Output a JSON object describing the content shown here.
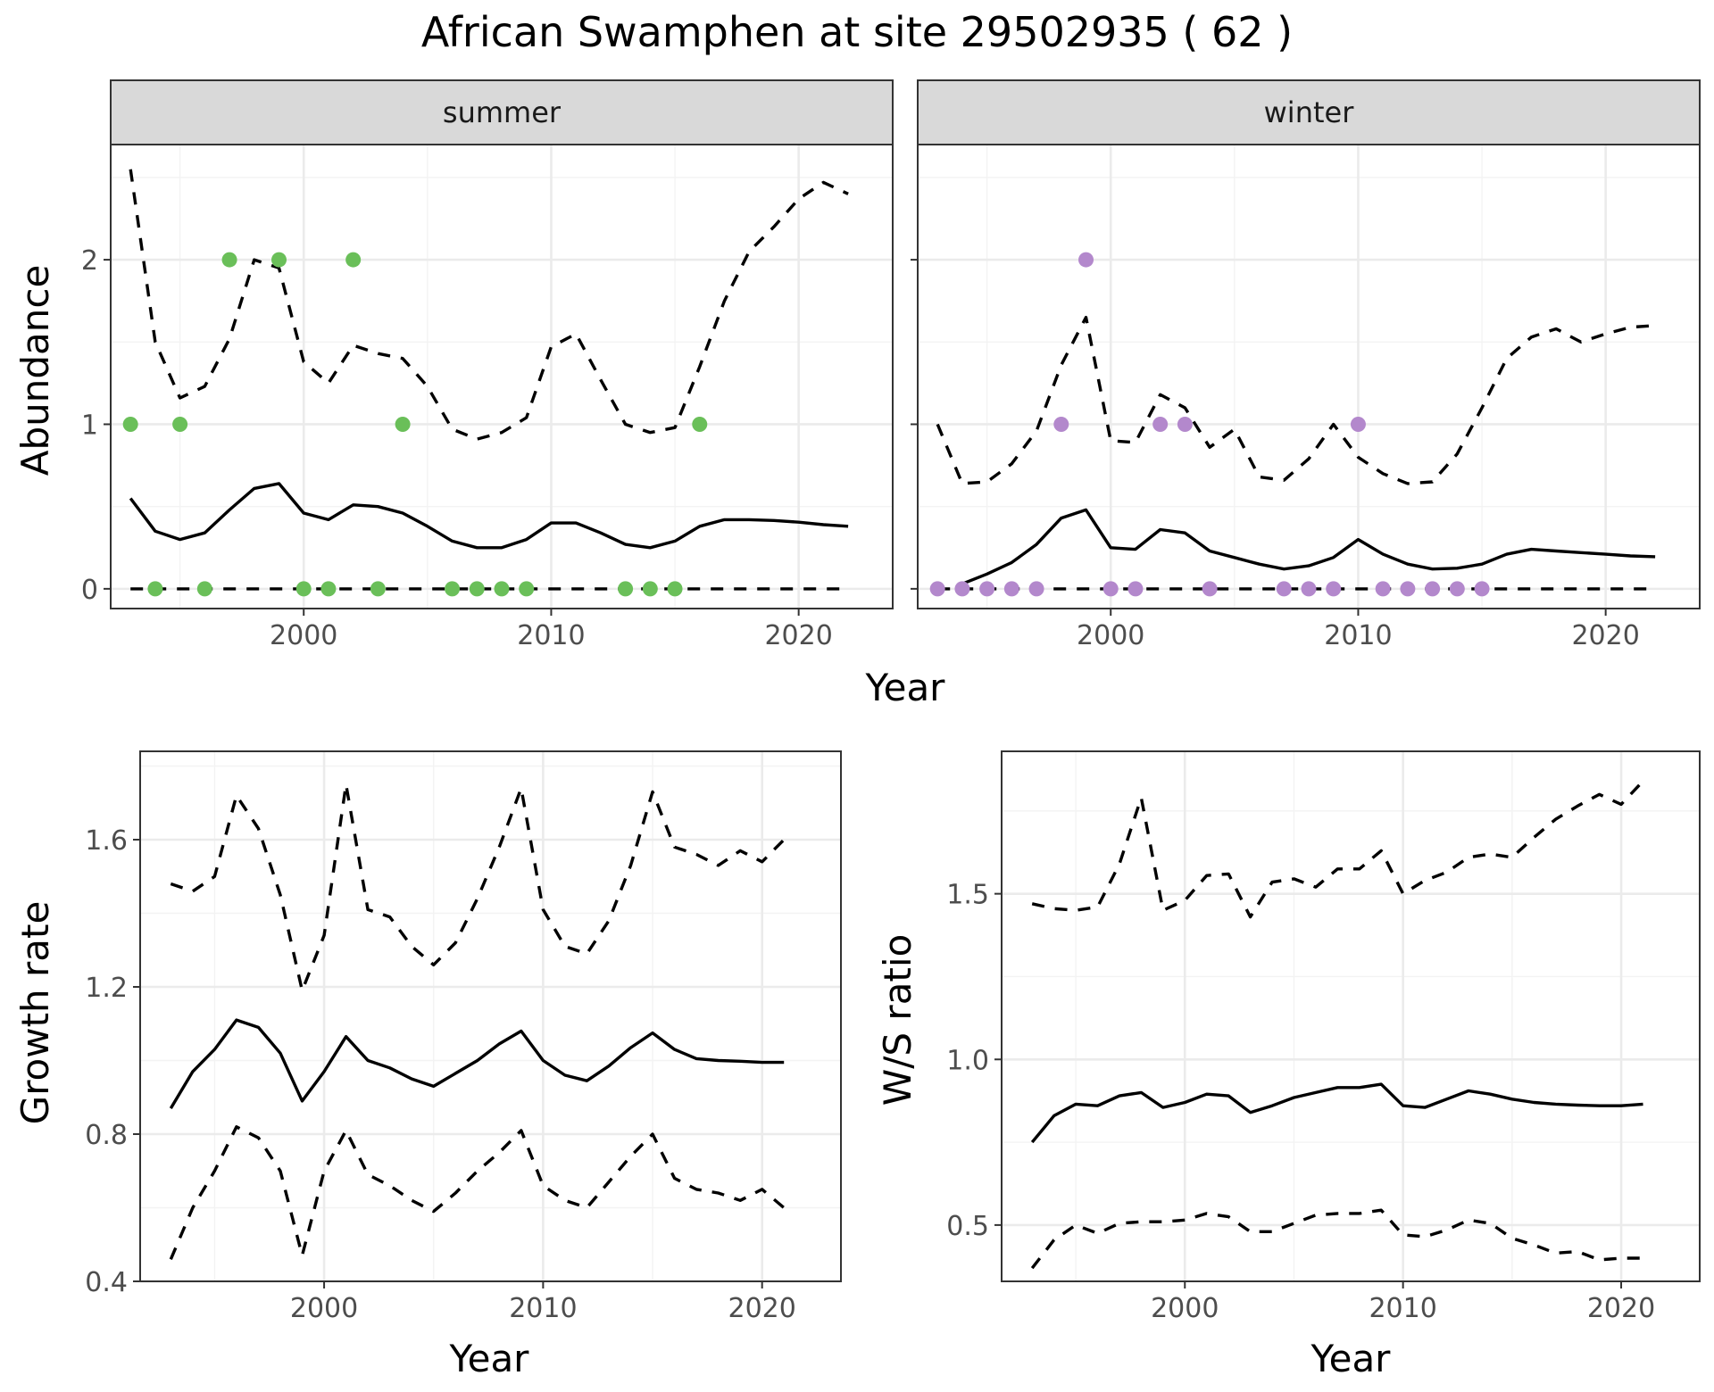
{
  "title": "African Swamphen at site 29502935 ( 62 )",
  "colors": {
    "summer_points": "#6abf59",
    "winter_points": "#b388cc",
    "lines": "#000000",
    "strip_fill": "#d9d9d9",
    "grid": "#ebebeb"
  },
  "chart_data": [
    {
      "type": "line",
      "title": "African Swamphen at site 29502935 ( 62 )",
      "facet_label": "summer",
      "xlabel": "Year",
      "ylabel": "Abundance",
      "xlim": [
        1992.2,
        2023.8
      ],
      "ylim": [
        -0.12,
        2.7
      ],
      "x_ticks": [
        2000,
        2010,
        2020
      ],
      "y_ticks": [
        0,
        1,
        2
      ],
      "grid": true,
      "x": [
        1993,
        1994,
        1995,
        1996,
        1997,
        1998,
        1999,
        2000,
        2001,
        2002,
        2003,
        2004,
        2005,
        2006,
        2007,
        2008,
        2009,
        2010,
        2011,
        2012,
        2013,
        2014,
        2015,
        2016,
        2017,
        2018,
        2019,
        2020,
        2021,
        2022
      ],
      "series": [
        {
          "role": "estimate",
          "style": "solid",
          "values": [
            0.55,
            0.35,
            0.3,
            0.34,
            0.48,
            0.61,
            0.64,
            0.46,
            0.42,
            0.51,
            0.5,
            0.46,
            0.38,
            0.29,
            0.25,
            0.25,
            0.3,
            0.4,
            0.4,
            0.34,
            0.27,
            0.25,
            0.29,
            0.38,
            0.42,
            0.42,
            0.415,
            0.405,
            0.39,
            0.38
          ]
        },
        {
          "role": "upper",
          "style": "dashed",
          "values": [
            2.55,
            1.5,
            1.16,
            1.23,
            1.52,
            2.0,
            1.95,
            1.38,
            1.25,
            1.48,
            1.43,
            1.4,
            1.23,
            0.97,
            0.91,
            0.95,
            1.04,
            1.47,
            1.55,
            1.27,
            1.0,
            0.95,
            0.98,
            1.35,
            1.75,
            2.05,
            2.2,
            2.37,
            2.47,
            2.4
          ]
        },
        {
          "role": "lower",
          "style": "dashed",
          "values": [
            0,
            0,
            0,
            0,
            0,
            0,
            0,
            0,
            0,
            0,
            0,
            0,
            0,
            0,
            0,
            0,
            0,
            0,
            0,
            0,
            0,
            0,
            0,
            0,
            0,
            0,
            0,
            0,
            0,
            0
          ]
        }
      ],
      "points": {
        "x": [
          1993,
          1994,
          1995,
          1996,
          1997,
          1999,
          2000,
          2001,
          2002,
          2003,
          2004,
          2006,
          2007,
          2008,
          2009,
          2013,
          2014,
          2015,
          2016
        ],
        "y": [
          1,
          0,
          1,
          0,
          2,
          2,
          0,
          0,
          2,
          0,
          1,
          0,
          0,
          0,
          0,
          0,
          0,
          0,
          1
        ]
      }
    },
    {
      "type": "line",
      "facet_label": "winter",
      "xlabel": "Year",
      "ylabel": "Abundance",
      "xlim": [
        1992.2,
        2023.8
      ],
      "ylim": [
        -0.12,
        2.7
      ],
      "x_ticks": [
        2000,
        2010,
        2020
      ],
      "y_ticks": [
        0,
        1,
        2
      ],
      "grid": true,
      "x": [
        1993,
        1994,
        1995,
        1996,
        1997,
        1998,
        1999,
        2000,
        2001,
        2002,
        2003,
        2004,
        2005,
        2006,
        2007,
        2008,
        2009,
        2010,
        2011,
        2012,
        2013,
        2014,
        2015,
        2016,
        2017,
        2018,
        2019,
        2020,
        2021,
        2022
      ],
      "series": [
        {
          "role": "estimate",
          "style": "solid",
          "values": [
            null,
            0.03,
            0.09,
            0.16,
            0.27,
            0.43,
            0.48,
            0.25,
            0.24,
            0.36,
            0.34,
            0.23,
            0.19,
            0.15,
            0.12,
            0.14,
            0.19,
            0.3,
            0.21,
            0.15,
            0.12,
            0.125,
            0.15,
            0.21,
            0.24,
            0.23,
            0.22,
            0.21,
            0.2,
            0.195
          ]
        },
        {
          "role": "upper",
          "style": "dashed",
          "values": [
            1.0,
            0.64,
            0.65,
            0.76,
            0.96,
            1.36,
            1.65,
            0.9,
            0.89,
            1.18,
            1.1,
            0.86,
            0.97,
            0.68,
            0.66,
            0.79,
            1.0,
            0.8,
            0.7,
            0.64,
            0.65,
            0.82,
            1.1,
            1.4,
            1.53,
            1.58,
            1.5,
            1.55,
            1.59,
            1.6
          ]
        },
        {
          "role": "lower",
          "style": "dashed",
          "values": [
            0,
            0,
            0,
            0,
            0,
            0,
            0,
            0,
            0,
            0,
            0,
            0,
            0,
            0,
            0,
            0,
            0,
            0,
            0,
            0,
            0,
            0,
            0,
            0,
            0,
            0,
            0,
            0,
            0,
            0
          ]
        }
      ],
      "points": {
        "x": [
          1993,
          1994,
          1995,
          1996,
          1997,
          1998,
          1999,
          2000,
          2001,
          2002,
          2003,
          2004,
          2007,
          2008,
          2009,
          2010,
          2011,
          2012,
          2013,
          2014,
          2015
        ],
        "y": [
          0,
          0,
          0,
          0,
          0,
          1,
          2,
          0,
          0,
          1,
          1,
          0,
          0,
          0,
          0,
          1,
          0,
          0,
          0,
          0,
          0
        ]
      }
    },
    {
      "type": "line",
      "xlabel": "Year",
      "ylabel": "Growth rate",
      "xlim": [
        1991.6,
        2023.6
      ],
      "ylim": [
        0.4,
        1.84
      ],
      "x_ticks": [
        2000,
        2010,
        2020
      ],
      "y_ticks": [
        0.4,
        0.8,
        1.2,
        1.6
      ],
      "y_tick_labels": [
        "0.4",
        "0.8",
        "1.2",
        "1.6"
      ],
      "grid": true,
      "x": [
        1993,
        1994,
        1995,
        1996,
        1997,
        1998,
        1999,
        2000,
        2001,
        2002,
        2003,
        2004,
        2005,
        2006,
        2007,
        2008,
        2009,
        2010,
        2011,
        2012,
        2013,
        2014,
        2015,
        2016,
        2017,
        2018,
        2019,
        2020,
        2021
      ],
      "series": [
        {
          "role": "estimate",
          "style": "solid",
          "values": [
            0.87,
            0.97,
            1.03,
            1.11,
            1.09,
            1.02,
            0.89,
            0.97,
            1.065,
            1.0,
            0.98,
            0.95,
            0.93,
            0.965,
            1.0,
            1.045,
            1.08,
            1.0,
            0.96,
            0.945,
            0.985,
            1.035,
            1.075,
            1.03,
            1.005,
            1.0,
            0.998,
            0.995,
            0.995
          ]
        },
        {
          "role": "upper",
          "style": "dashed",
          "values": [
            1.48,
            1.46,
            1.5,
            1.72,
            1.63,
            1.45,
            1.19,
            1.34,
            1.75,
            1.41,
            1.39,
            1.31,
            1.26,
            1.32,
            1.44,
            1.58,
            1.74,
            1.41,
            1.31,
            1.29,
            1.38,
            1.53,
            1.73,
            1.58,
            1.56,
            1.53,
            1.57,
            1.54,
            1.6
          ]
        },
        {
          "role": "lower",
          "style": "dashed",
          "values": [
            0.46,
            0.6,
            0.7,
            0.82,
            0.79,
            0.7,
            0.47,
            0.7,
            0.81,
            0.69,
            0.66,
            0.62,
            0.59,
            0.64,
            0.7,
            0.75,
            0.81,
            0.66,
            0.62,
            0.6,
            0.67,
            0.74,
            0.8,
            0.68,
            0.65,
            0.64,
            0.62,
            0.65,
            0.6
          ]
        }
      ]
    },
    {
      "type": "line",
      "xlabel": "Year",
      "ylabel": "W/S ratio",
      "xlim": [
        1991.6,
        2023.6
      ],
      "ylim": [
        0.33,
        1.93
      ],
      "x_ticks": [
        2000,
        2010,
        2020
      ],
      "y_ticks": [
        0.5,
        1.0,
        1.5
      ],
      "y_tick_labels": [
        "0.5",
        "1.0",
        "1.5"
      ],
      "grid": true,
      "x": [
        1993,
        1994,
        1995,
        1996,
        1997,
        1998,
        1999,
        2000,
        2001,
        2002,
        2003,
        2004,
        2005,
        2006,
        2007,
        2008,
        2009,
        2010,
        2011,
        2012,
        2013,
        2014,
        2015,
        2016,
        2017,
        2018,
        2019,
        2020,
        2021
      ],
      "series": [
        {
          "role": "estimate",
          "style": "solid",
          "values": [
            0.75,
            0.83,
            0.865,
            0.86,
            0.89,
            0.9,
            0.855,
            0.87,
            0.895,
            0.89,
            0.84,
            0.86,
            0.885,
            0.9,
            0.915,
            0.915,
            0.925,
            0.86,
            0.855,
            0.88,
            0.905,
            0.895,
            0.88,
            0.87,
            0.865,
            0.862,
            0.86,
            0.86,
            0.865
          ]
        },
        {
          "role": "upper",
          "style": "dashed",
          "values": [
            1.47,
            1.455,
            1.45,
            1.46,
            1.59,
            1.79,
            1.45,
            1.48,
            1.555,
            1.56,
            1.43,
            1.535,
            1.545,
            1.52,
            1.575,
            1.575,
            1.63,
            1.5,
            1.54,
            1.565,
            1.61,
            1.62,
            1.61,
            1.67,
            1.725,
            1.765,
            1.8,
            1.77,
            1.84
          ]
        },
        {
          "role": "lower",
          "style": "dashed",
          "values": [
            0.37,
            0.455,
            0.5,
            0.475,
            0.505,
            0.51,
            0.51,
            0.515,
            0.535,
            0.525,
            0.48,
            0.48,
            0.505,
            0.53,
            0.535,
            0.535,
            0.545,
            0.47,
            0.465,
            0.485,
            0.515,
            0.505,
            0.46,
            0.44,
            0.415,
            0.42,
            0.395,
            0.4,
            0.4
          ]
        }
      ]
    }
  ]
}
